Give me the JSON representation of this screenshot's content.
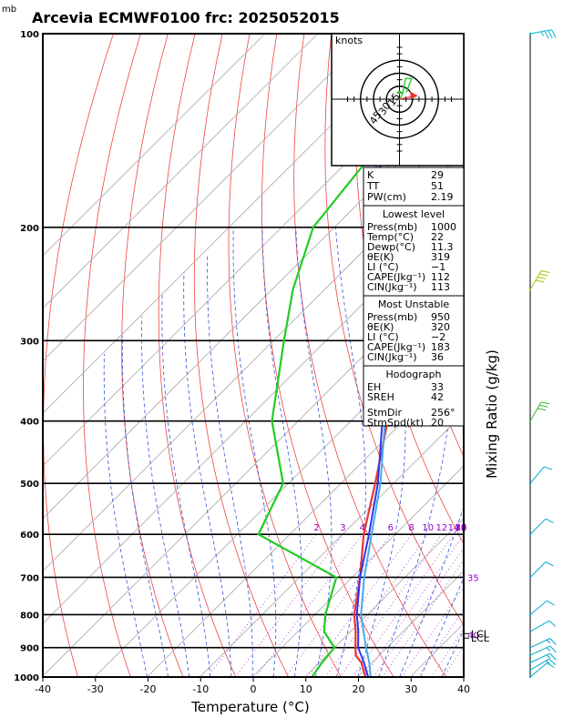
{
  "title": "Arcevia ECMWF0100 frc: 2025052015",
  "pressure_unit": "mb",
  "chart_data": {
    "type": "line",
    "title": "Arcevia ECMWF0100 frc: 2025052015",
    "xlabel": "Temperature (°C)",
    "ylabel": "Mixing Ratio (g/kg)",
    "x_ticks": [
      -40,
      -30,
      -20,
      -10,
      0,
      10,
      20,
      30,
      40
    ],
    "y_ticks": [
      100,
      200,
      300,
      400,
      500,
      600,
      700,
      800,
      900,
      1000
    ],
    "xlim": [
      -40,
      40
    ],
    "ylim": [
      1000,
      100
    ],
    "y_scale": "log-pressure",
    "skew": "temperature isotherms skewed 45°",
    "series": [
      {
        "key": "temperature",
        "color": "#ee3333",
        "points": [
          [
            1000,
            21.5
          ],
          [
            950,
            18
          ],
          [
            925,
            15.5
          ],
          [
            900,
            14
          ],
          [
            850,
            11
          ],
          [
            800,
            7.5
          ],
          [
            700,
            1.5
          ],
          [
            600,
            -6
          ],
          [
            500,
            -13.5
          ],
          [
            400,
            -23
          ],
          [
            300,
            -37.5
          ],
          [
            250,
            -48
          ],
          [
            200,
            -47
          ],
          [
            150,
            -40
          ],
          [
            100,
            -30
          ]
        ]
      },
      {
        "key": "dewpoint",
        "color": "#22cc22",
        "points": [
          [
            1000,
            11.3
          ],
          [
            950,
            10.5
          ],
          [
            900,
            10
          ],
          [
            850,
            5
          ],
          [
            800,
            2
          ],
          [
            700,
            -3
          ],
          [
            600,
            -26
          ],
          [
            500,
            -31
          ],
          [
            400,
            -45
          ],
          [
            300,
            -58
          ],
          [
            250,
            -66
          ],
          [
            200,
            -74
          ],
          [
            150,
            -77
          ],
          [
            100,
            -85
          ]
        ]
      },
      {
        "key": "parcel",
        "color": "#3333ee",
        "points": [
          [
            1000,
            22
          ],
          [
            950,
            18.5
          ],
          [
            900,
            14.5
          ],
          [
            850,
            11.5
          ],
          [
            800,
            8
          ],
          [
            700,
            1.5
          ],
          [
            600,
            -5
          ],
          [
            500,
            -13
          ],
          [
            400,
            -24
          ],
          [
            300,
            -39
          ],
          [
            200,
            -63
          ],
          [
            150,
            -76
          ],
          [
            115,
            -85
          ]
        ]
      },
      {
        "key": "virtual",
        "color": "#44aaee",
        "points": [
          [
            1000,
            22.5
          ],
          [
            950,
            19.5
          ],
          [
            900,
            16
          ],
          [
            850,
            12.5
          ],
          [
            800,
            8.8
          ],
          [
            700,
            2.3
          ],
          [
            600,
            -4.5
          ],
          [
            500,
            -12.5
          ],
          [
            400,
            -23.5
          ],
          [
            300,
            -38.5
          ],
          [
            200,
            -63
          ],
          [
            150,
            -77
          ],
          [
            105,
            -88
          ]
        ]
      }
    ],
    "mixing_ratio_labels": [
      "2",
      "3",
      "4",
      "6",
      "8",
      "10",
      "12",
      "14",
      "16",
      "18",
      "20",
      "25",
      "30"
    ],
    "mixing_ratio_axis_labels": [
      {
        "text": "35",
        "p": 700
      },
      {
        "text": "40",
        "p": 860
      }
    ],
    "lcl_labels": [
      "LCL",
      "LCL"
    ],
    "hodograph": {
      "unit": "knots",
      "rings": [
        15,
        30,
        45
      ],
      "ring_labels": [
        "15",
        "30",
        "45"
      ],
      "hodo_points": [
        [
          0,
          0
        ],
        [
          2,
          3
        ],
        [
          4,
          8
        ],
        [
          7,
          24
        ],
        [
          14,
          24
        ],
        [
          8,
          8
        ]
      ],
      "storm_vector": [
        20,
        4
      ]
    },
    "indices": {
      "top": [
        {
          "label": "K",
          "value": "29"
        },
        {
          "label": "TT",
          "value": "51"
        },
        {
          "label": "PW(cm)",
          "value": "2.19"
        }
      ],
      "lowest_level": {
        "header": "Lowest level",
        "rows": [
          {
            "label": "Press(mb)",
            "value": "1000"
          },
          {
            "label": "Temp(°C)",
            "value": "22"
          },
          {
            "label": "Dewp(°C)",
            "value": "11.3"
          },
          {
            "label": "θE(K)",
            "value": "319"
          },
          {
            "label": "LI (°C)",
            "value": "−1"
          },
          {
            "label": "CAPE(Jkg⁻¹)",
            "value": "112"
          },
          {
            "label": "CIN(Jkg⁻¹)",
            "value": "113"
          }
        ]
      },
      "most_unstable": {
        "header": "Most Unstable",
        "rows": [
          {
            "label": "Press(mb)",
            "value": "950"
          },
          {
            "label": "θE(K)",
            "value": "320"
          },
          {
            "label": "LI (°C)",
            "value": "−2"
          },
          {
            "label": "CAPE(Jkg⁻¹)",
            "value": "183"
          },
          {
            "label": "CIN(Jkg⁻¹)",
            "value": "36"
          }
        ]
      },
      "hodograph": {
        "header": "Hodograph",
        "rows": [
          {
            "label": "EH",
            "value": "33"
          },
          {
            "label": "SREH",
            "value": "42"
          },
          {
            "label": "StmDir",
            "value": "256°"
          },
          {
            "label": "StmSpd(kt)",
            "value": "20"
          }
        ]
      }
    },
    "wind_barbs": [
      {
        "p": 1000,
        "dir": 230,
        "spd": 10
      },
      {
        "p": 975,
        "dir": 240,
        "spd": 15
      },
      {
        "p": 950,
        "dir": 245,
        "spd": 15
      },
      {
        "p": 925,
        "dir": 245,
        "spd": 15
      },
      {
        "p": 900,
        "dir": 245,
        "spd": 15
      },
      {
        "p": 850,
        "dir": 240,
        "spd": 10
      },
      {
        "p": 800,
        "dir": 230,
        "spd": 10
      },
      {
        "p": 700,
        "dir": 225,
        "spd": 10
      },
      {
        "p": 600,
        "dir": 225,
        "spd": 10
      },
      {
        "p": 500,
        "dir": 220,
        "spd": 10
      },
      {
        "p": 400,
        "dir": 210,
        "spd": 30
      },
      {
        "p": 250,
        "dir": 210,
        "spd": 40
      },
      {
        "p": 100,
        "dir": 260,
        "spd": 35
      }
    ]
  }
}
